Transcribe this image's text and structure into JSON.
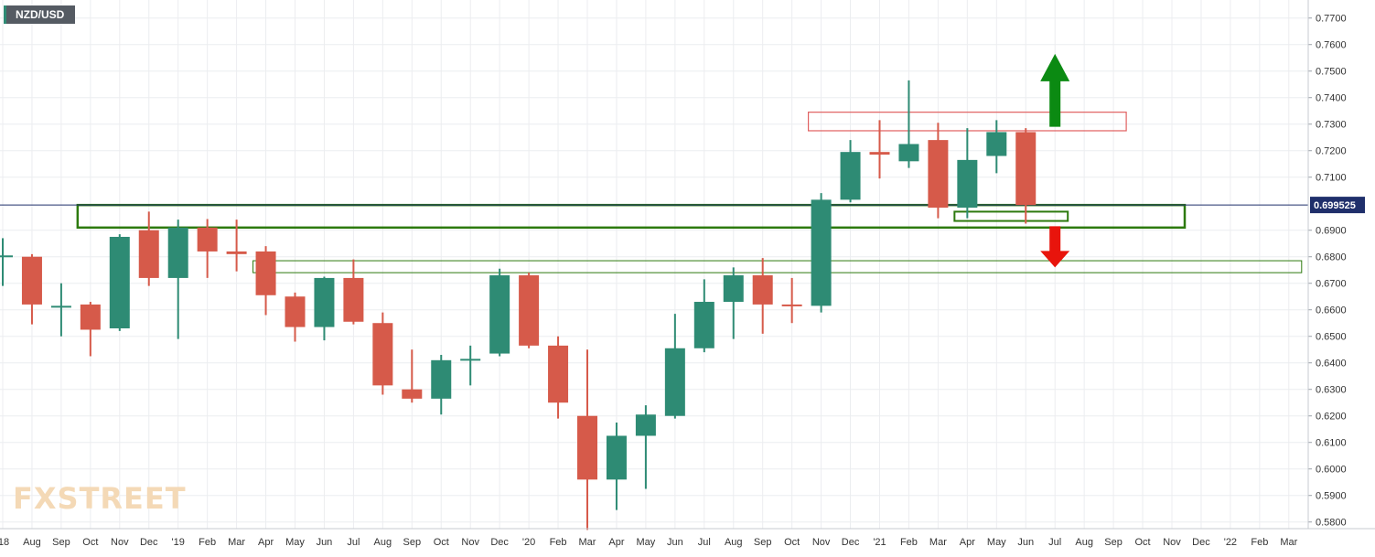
{
  "header": {
    "symbol": "NZD/USD"
  },
  "branding": {
    "logo_text": "FXSTREET",
    "logo_color": "#f4d9b6"
  },
  "colors": {
    "up": "#2e8b74",
    "down": "#d65a4a",
    "grid": "#ecedf0",
    "price_line": "#1f2f6b",
    "zone": "#2d7a0e",
    "resistance_box": "#e06060",
    "arrow_up": "#0b8a12",
    "arrow_down": "#e8140c"
  },
  "chart_data": {
    "type": "candlestick",
    "title": "NZD/USD",
    "timeframe": "monthly",
    "ylim": [
      0.577,
      0.778
    ],
    "y_ticks": [
      "0.7700",
      "0.7600",
      "0.7500",
      "0.7400",
      "0.7300",
      "0.7200",
      "0.7100",
      "0.6900",
      "0.6800",
      "0.6700",
      "0.6600",
      "0.6500",
      "0.6400",
      "0.6300",
      "0.6200",
      "0.6100",
      "0.6000",
      "0.5900",
      "0.5800"
    ],
    "x_labels": [
      "'18",
      "Aug",
      "Sep",
      "Oct",
      "Nov",
      "Dec",
      "'19",
      "Feb",
      "Mar",
      "Apr",
      "May",
      "Jun",
      "Jul",
      "Aug",
      "Sep",
      "Oct",
      "Nov",
      "Dec",
      "'20",
      "Feb",
      "Mar",
      "Apr",
      "May",
      "Jun",
      "Jul",
      "Aug",
      "Sep",
      "Oct",
      "Nov",
      "Dec",
      "'21",
      "Feb",
      "Mar",
      "Apr",
      "May",
      "Jun",
      "Jul",
      "Aug",
      "Sep",
      "Oct",
      "Nov",
      "Dec",
      "'22",
      "Feb",
      "Mar"
    ],
    "candles": [
      {
        "t": "Jul 2018",
        "o": 0.68,
        "h": 0.687,
        "l": 0.669,
        "c": 0.6805
      },
      {
        "t": "Aug 2018",
        "o": 0.68,
        "h": 0.681,
        "l": 0.6545,
        "c": 0.662
      },
      {
        "t": "Sep 2018",
        "o": 0.6615,
        "h": 0.67,
        "l": 0.65,
        "c": 0.6615
      },
      {
        "t": "Oct 2018",
        "o": 0.662,
        "h": 0.663,
        "l": 0.6425,
        "c": 0.6525
      },
      {
        "t": "Nov 2018",
        "o": 0.653,
        "h": 0.6885,
        "l": 0.652,
        "c": 0.6875
      },
      {
        "t": "Dec 2018",
        "o": 0.69,
        "h": 0.697,
        "l": 0.669,
        "c": 0.672
      },
      {
        "t": "Jan 2019",
        "o": 0.672,
        "h": 0.694,
        "l": 0.649,
        "c": 0.691
      },
      {
        "t": "Feb 2019",
        "o": 0.691,
        "h": 0.6942,
        "l": 0.672,
        "c": 0.682
      },
      {
        "t": "Mar 2019",
        "o": 0.682,
        "h": 0.694,
        "l": 0.6745,
        "c": 0.681
      },
      {
        "t": "Apr 2019",
        "o": 0.682,
        "h": 0.684,
        "l": 0.658,
        "c": 0.6655
      },
      {
        "t": "May 2019",
        "o": 0.665,
        "h": 0.6665,
        "l": 0.648,
        "c": 0.6535
      },
      {
        "t": "Jun 2019",
        "o": 0.6535,
        "h": 0.6725,
        "l": 0.6485,
        "c": 0.672
      },
      {
        "t": "Jul 2019",
        "o": 0.672,
        "h": 0.679,
        "l": 0.6545,
        "c": 0.6555
      },
      {
        "t": "Aug 2019",
        "o": 0.655,
        "h": 0.659,
        "l": 0.628,
        "c": 0.6315
      },
      {
        "t": "Sep 2019",
        "o": 0.63,
        "h": 0.645,
        "l": 0.625,
        "c": 0.6265
      },
      {
        "t": "Oct 2019",
        "o": 0.6265,
        "h": 0.643,
        "l": 0.6205,
        "c": 0.641
      },
      {
        "t": "Nov 2019",
        "o": 0.6415,
        "h": 0.6465,
        "l": 0.6315,
        "c": 0.6415
      },
      {
        "t": "Dec 2019",
        "o": 0.6435,
        "h": 0.6755,
        "l": 0.6425,
        "c": 0.673
      },
      {
        "t": "Jan 2020",
        "o": 0.673,
        "h": 0.674,
        "l": 0.6455,
        "c": 0.6465
      },
      {
        "t": "Feb 2020",
        "o": 0.6465,
        "h": 0.65,
        "l": 0.619,
        "c": 0.625
      },
      {
        "t": "Mar 2020",
        "o": 0.62,
        "h": 0.645,
        "l": 0.577,
        "c": 0.596
      },
      {
        "t": "Apr 2020",
        "o": 0.596,
        "h": 0.6175,
        "l": 0.5845,
        "c": 0.6125
      },
      {
        "t": "May 2020",
        "o": 0.6125,
        "h": 0.624,
        "l": 0.5925,
        "c": 0.6205
      },
      {
        "t": "Jun 2020",
        "o": 0.62,
        "h": 0.6585,
        "l": 0.619,
        "c": 0.6455
      },
      {
        "t": "Jul 2020",
        "o": 0.6455,
        "h": 0.6715,
        "l": 0.644,
        "c": 0.663
      },
      {
        "t": "Aug 2020",
        "o": 0.663,
        "h": 0.676,
        "l": 0.649,
        "c": 0.673
      },
      {
        "t": "Sep 2020",
        "o": 0.673,
        "h": 0.6795,
        "l": 0.651,
        "c": 0.662
      },
      {
        "t": "Oct 2020",
        "o": 0.662,
        "h": 0.672,
        "l": 0.655,
        "c": 0.6615
      },
      {
        "t": "Nov 2020",
        "o": 0.6615,
        "h": 0.704,
        "l": 0.659,
        "c": 0.7015
      },
      {
        "t": "Dec 2020",
        "o": 0.7015,
        "h": 0.724,
        "l": 0.7005,
        "c": 0.7195
      },
      {
        "t": "Jan 2021",
        "o": 0.7195,
        "h": 0.7315,
        "l": 0.7095,
        "c": 0.7185
      },
      {
        "t": "Feb 2021",
        "o": 0.716,
        "h": 0.7465,
        "l": 0.7135,
        "c": 0.7225
      },
      {
        "t": "Mar 2021",
        "o": 0.724,
        "h": 0.7305,
        "l": 0.6945,
        "c": 0.6985
      },
      {
        "t": "Apr 2021",
        "o": 0.6985,
        "h": 0.7285,
        "l": 0.6945,
        "c": 0.7165
      },
      {
        "t": "May 2021",
        "o": 0.718,
        "h": 0.7315,
        "l": 0.7115,
        "c": 0.727
      },
      {
        "t": "Jun 2021",
        "o": 0.727,
        "h": 0.7285,
        "l": 0.6925,
        "c": 0.6995
      }
    ],
    "current_price": {
      "value": 0.699525,
      "label": "0.699525"
    },
    "annotations": [
      {
        "kind": "resistance_box",
        "from": "Nov 2020",
        "to": "Sep 2021",
        "y_low": 0.7275,
        "y_high": 0.7345
      },
      {
        "kind": "support_zone",
        "from": "Oct 2018",
        "to": "Nov 2021",
        "y_low": 0.691,
        "y_high": 0.6995
      },
      {
        "kind": "support_box",
        "from": "Apr 2021",
        "to": "Jul 2021",
        "y_low": 0.6935,
        "y_high": 0.697
      },
      {
        "kind": "support_zone_thin",
        "from": "Apr 2019",
        "to": "Mar 2022",
        "y_low": 0.674,
        "y_high": 0.6785
      },
      {
        "kind": "arrow_up",
        "at": "Jul 2021",
        "from_y": 0.729,
        "to_y": 0.7565
      },
      {
        "kind": "arrow_down",
        "at": "Jul 2021",
        "from_y": 0.6915,
        "to_y": 0.676
      }
    ],
    "grid": true
  }
}
